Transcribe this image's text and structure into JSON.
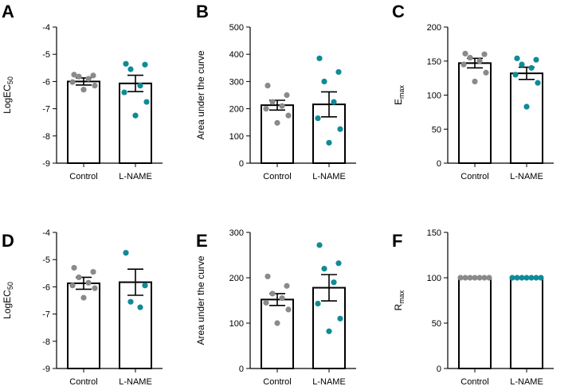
{
  "colors": {
    "control": "#8a8a8a",
    "lname": "#0f8b96",
    "axis": "#000000"
  },
  "chart_data": [
    {
      "panel": "A",
      "type": "bar",
      "ylabel": "LogEC",
      "ylabel_sub": "50",
      "ylim": [
        -9,
        -4
      ],
      "yticks": [
        -4,
        -5,
        -6,
        -7,
        -8,
        -9
      ],
      "categories": [
        "Control",
        "L-NAME"
      ],
      "means": [
        -6.0,
        -6.07
      ],
      "sem": [
        0.13,
        0.3
      ],
      "points": [
        [
          -5.75,
          -5.78,
          -5.82,
          -5.9,
          -6.02,
          -6.15,
          -6.3
        ],
        [
          -5.35,
          -5.38,
          -5.55,
          -6.15,
          -6.4,
          -6.75,
          -7.25
        ]
      ]
    },
    {
      "panel": "B",
      "type": "bar",
      "ylabel": "Area under the curve",
      "ylabel_sub": "",
      "ylim": [
        0,
        500
      ],
      "yticks": [
        0,
        100,
        200,
        300,
        400,
        500
      ],
      "categories": [
        "Control",
        "L-NAME"
      ],
      "means": [
        213,
        216
      ],
      "sem": [
        18,
        46
      ],
      "points": [
        [
          285,
          250,
          225,
          210,
          200,
          175,
          148
        ],
        [
          385,
          335,
          300,
          225,
          165,
          125,
          75
        ]
      ]
    },
    {
      "panel": "C",
      "type": "bar",
      "ylabel": "E",
      "ylabel_sub": "max",
      "ylim": [
        0,
        200
      ],
      "yticks": [
        0,
        50,
        100,
        150,
        200
      ],
      "categories": [
        "Control",
        "L-NAME"
      ],
      "means": [
        147,
        132
      ],
      "sem": [
        7,
        9
      ],
      "points": [
        [
          161,
          160,
          155,
          150,
          145,
          133,
          120
        ],
        [
          154,
          152,
          145,
          140,
          130,
          118,
          83
        ]
      ]
    },
    {
      "panel": "D",
      "type": "bar",
      "ylabel": "LogEC",
      "ylabel_sub": "50",
      "ylim": [
        -9,
        -4
      ],
      "yticks": [
        -4,
        -5,
        -6,
        -7,
        -8,
        -9
      ],
      "categories": [
        "Control",
        "L-NAME"
      ],
      "means": [
        -5.87,
        -5.83
      ],
      "sem": [
        0.22,
        0.48
      ],
      "points": [
        [
          -5.3,
          -5.45,
          -5.65,
          -5.85,
          -5.95,
          -6.05,
          -6.4
        ],
        [
          -4.75,
          -5.95,
          -6.55,
          -6.75
        ]
      ]
    },
    {
      "panel": "E",
      "type": "bar",
      "ylabel": "Area under the curve",
      "ylabel_sub": "",
      "ylim": [
        0,
        300
      ],
      "yticks": [
        0,
        100,
        200,
        300
      ],
      "categories": [
        "Control",
        "L-NAME"
      ],
      "means": [
        152,
        178
      ],
      "sem": [
        13,
        29
      ],
      "points": [
        [
          203,
          182,
          165,
          155,
          145,
          130,
          100
        ],
        [
          272,
          232,
          220,
          190,
          143,
          110,
          82
        ]
      ]
    },
    {
      "panel": "F",
      "type": "bar",
      "ylabel": "R",
      "ylabel_sub": "max",
      "ylim": [
        0,
        150
      ],
      "yticks": [
        0,
        50,
        100,
        150
      ],
      "categories": [
        "Control",
        "L-NAME"
      ],
      "means": [
        100,
        100
      ],
      "sem": [
        0,
        0
      ],
      "points": [
        [
          100,
          100,
          100,
          100,
          100,
          100,
          100
        ],
        [
          100,
          100,
          100,
          100,
          100,
          100,
          100
        ]
      ]
    }
  ]
}
